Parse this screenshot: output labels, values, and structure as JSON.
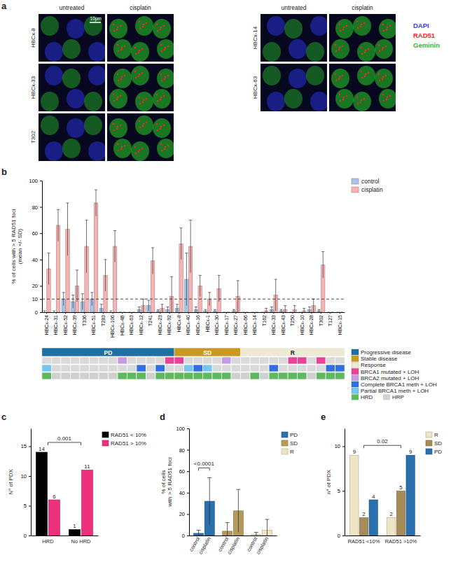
{
  "chart_data": [
    {
      "type": "images",
      "panel": "a",
      "columns": [
        "untreated",
        "cisplatin"
      ],
      "image_groups": [
        [
          "HBCx-8",
          "HBCx-33",
          "T302"
        ],
        [
          "HBCx-14",
          "HBCx-63"
        ]
      ],
      "channels": [
        {
          "name": "DAPI",
          "color": "#2f3cff"
        },
        {
          "name": "RAD51",
          "color": "#ff2424"
        },
        {
          "name": "Geminin",
          "color": "#27c227"
        }
      ],
      "scale_bar": "10μm"
    },
    {
      "type": "bar",
      "panel": "b",
      "categories": [
        "HBCx-24",
        "HBCx-31",
        "HBCx-52",
        "HBCx-39",
        "T336",
        "HBCx-51",
        "T283",
        "HBCx-106",
        "HBCx-4B",
        "HBCx-63",
        "HBCx-12",
        "T241",
        "HBCx-23",
        "HBCx-92",
        "HBCx-8",
        "HBCx-40",
        "HBCx-16",
        "HBCx-1",
        "HBCx-30",
        "HBCx-17",
        "HBCx-27",
        "HBCx-66",
        "HBCx-14",
        "T162",
        "HBCx-33",
        "HBCx-43",
        "T250",
        "HBCx-10",
        "HBCx-28",
        "T302",
        "T127",
        "HBCx-15"
      ],
      "series": [
        {
          "name": "control",
          "color": "#a9c4eb",
          "values": [
            0,
            0,
            10,
            8,
            8,
            10,
            3,
            0,
            0,
            0,
            2,
            5,
            1,
            2,
            3,
            25,
            2,
            1,
            1,
            0,
            1,
            0,
            0,
            0,
            2,
            1,
            0,
            0,
            2,
            1,
            0,
            0
          ],
          "errors": [
            1,
            1,
            5,
            5,
            6,
            5,
            3,
            1,
            0,
            0,
            2,
            4,
            1,
            2,
            3,
            20,
            2,
            1,
            1,
            0,
            1,
            0,
            0,
            0,
            2,
            1,
            0,
            0,
            2,
            1,
            0,
            0
          ]
        },
        {
          "name": "cisplatin",
          "color": "#f5b3b3",
          "values": [
            33,
            66,
            63,
            20,
            50,
            83,
            28,
            50,
            0,
            0,
            5,
            39,
            3,
            12,
            52,
            50,
            20,
            10,
            18,
            0,
            12,
            0,
            0,
            1,
            13,
            2,
            2,
            1,
            5,
            36,
            0,
            0
          ],
          "errors": [
            12,
            12,
            20,
            12,
            20,
            10,
            12,
            12,
            0,
            0,
            5,
            10,
            3,
            15,
            12,
            20,
            8,
            5,
            10,
            0,
            12,
            0,
            0,
            2,
            12,
            3,
            3,
            2,
            5,
            10,
            0,
            0
          ]
        }
      ],
      "ylim": [
        0,
        100
      ],
      "yticks": [
        0,
        10,
        20,
        40,
        60,
        80,
        100
      ],
      "ylabel": [
        "% of cells with > 5 RAD51 foci",
        "(mean +/- SD)"
      ],
      "threshold": 10,
      "legend": "top-right",
      "annotation_rows": [
        {
          "values": [
            "PD",
            "PD",
            "PD",
            "PD",
            "PD",
            "PD",
            "PD",
            "PD",
            "PD",
            "PD",
            "PD",
            "PD",
            "PD",
            "PD",
            "SD",
            "SD",
            "SD",
            "SD",
            "SD",
            "SD",
            "SD",
            "R",
            "R",
            "R",
            "R",
            "R",
            "R",
            "R",
            "R",
            "R",
            "R",
            "R"
          ],
          "legend": [
            {
              "key": "PD",
              "label": "Progressive disease",
              "color": "#1f6fa3"
            },
            {
              "key": "SD",
              "label": "Stable disease",
              "color": "#c99a1e"
            },
            {
              "key": "R",
              "label": "Response",
              "color": "#ede9d3"
            }
          ]
        },
        {
          "values": [
            null,
            null,
            null,
            null,
            null,
            null,
            null,
            null,
            "BRCA2 mutated + LOH",
            null,
            null,
            null,
            null,
            "BRCA1 mutated + LOH",
            "BRCA1 mutated + LOH",
            null,
            null,
            null,
            null,
            "BRCA2 mutated + LOH",
            null,
            null,
            null,
            null,
            null,
            null,
            "BRCA1 mutated + LOH",
            "BRCA1 mutated + LOH",
            null,
            "BRCA1 mutated + LOH",
            null,
            null
          ],
          "legend": [
            {
              "label": "BRCA1 mutated + LOH",
              "color": "#e9409a"
            },
            {
              "label": "BRCA2 mutated + LOH",
              "color": "#c79be3"
            }
          ]
        },
        {
          "values": [
            "Partial BRCA1 meth + LOH",
            null,
            null,
            null,
            null,
            null,
            null,
            null,
            null,
            null,
            "Complete BRCA1 meth + LOH",
            null,
            "Complete BRCA1 meth + LOH",
            null,
            null,
            "Partial BRCA1 meth + LOH",
            "Complete BRCA1 meth + LOH",
            "Partial BRCA1 meth + LOH",
            null,
            null,
            null,
            null,
            null,
            null,
            "Complete BRCA1 meth + LOH",
            null,
            null,
            null,
            null,
            null,
            "Complete BRCA1 meth + LOH",
            "Complete BRCA1 meth + LOH"
          ],
          "legend": [
            {
              "label": "Complete BRCA1 meth + LOH",
              "color": "#2f6fe0"
            },
            {
              "label": "Partial BRCA1 meth + LOH",
              "color": "#72c6f0"
            }
          ]
        },
        {
          "values": [
            "HRD",
            "HRP",
            "HRP",
            "HRP",
            "HRP",
            "HRP",
            "HRP",
            "HRP",
            "HRD",
            "HRD",
            "HRD",
            "HRP",
            "HRD",
            "HRD",
            "HRD",
            "HRD",
            "HRD",
            "HRD",
            "HRD",
            "HRD",
            "HRP",
            "HRP",
            "HRD",
            "HRP",
            "HRD",
            "HRD",
            "HRD",
            "HRD",
            "HRP",
            "HRD",
            "HRD",
            "HRD"
          ],
          "legend": [
            {
              "label": "HRD",
              "color": "#5eb85e"
            },
            {
              "label": "HRP",
              "color": "#d0d0d0"
            }
          ]
        }
      ]
    },
    {
      "type": "bar",
      "panel": "c",
      "categories": [
        "HRD",
        "No HRD"
      ],
      "series": [
        {
          "name": "RAD51 < 10%",
          "color": "#000000",
          "values": [
            14,
            1
          ]
        },
        {
          "name": "RAD51 > 10%",
          "color": "#ee2f7e",
          "values": [
            6,
            11
          ]
        }
      ],
      "ylim": [
        0,
        18
      ],
      "yticks": [
        0,
        5,
        10,
        15
      ],
      "ylabel": [
        "N° of PDX"
      ],
      "data_labels": true,
      "legend": "right",
      "annotations": [
        {
          "text": "0.001",
          "from": "HRD",
          "to": "No HRD"
        }
      ]
    },
    {
      "type": "bar",
      "panel": "d",
      "categories": [
        "control",
        "cisplatin"
      ],
      "series": [
        {
          "name": "PD",
          "color": "#2a6fae",
          "values": [
            2,
            32
          ],
          "errors": [
            3,
            22
          ]
        },
        {
          "name": "SD",
          "color": "#b59a5a",
          "values": [
            4,
            23
          ],
          "errors": [
            8,
            20
          ]
        },
        {
          "name": "R",
          "color": "#efe4c4",
          "values": [
            1,
            5
          ],
          "errors": [
            2,
            10
          ]
        }
      ],
      "ylim": [
        0,
        100
      ],
      "yticks": [
        0,
        20,
        40,
        60,
        80,
        100
      ],
      "ylabel": [
        "% of cells",
        "with > 5 RAD51 foci"
      ],
      "legend": "right",
      "annotations": [
        {
          "text": "<0.0001",
          "series": "PD",
          "from": "control",
          "to": "cisplatin"
        }
      ]
    },
    {
      "type": "bar",
      "panel": "e",
      "categories": [
        "RAD51 <10%",
        "RAD51 >10%"
      ],
      "series": [
        {
          "name": "R",
          "color": "#efe4c4",
          "values": [
            9,
            2
          ]
        },
        {
          "name": "SD",
          "color": "#a88c58",
          "values": [
            2,
            5
          ]
        },
        {
          "name": "PD",
          "color": "#2a6fae",
          "values": [
            4,
            9
          ]
        }
      ],
      "ylim": [
        0,
        12
      ],
      "yticks": [
        0,
        5,
        10
      ],
      "ylabel": [
        "n° of PDX"
      ],
      "data_labels": true,
      "legend": "right",
      "annotations": [
        {
          "text": "0.02",
          "from": "RAD51 <10%",
          "to": "RAD51 >10%"
        }
      ]
    }
  ]
}
